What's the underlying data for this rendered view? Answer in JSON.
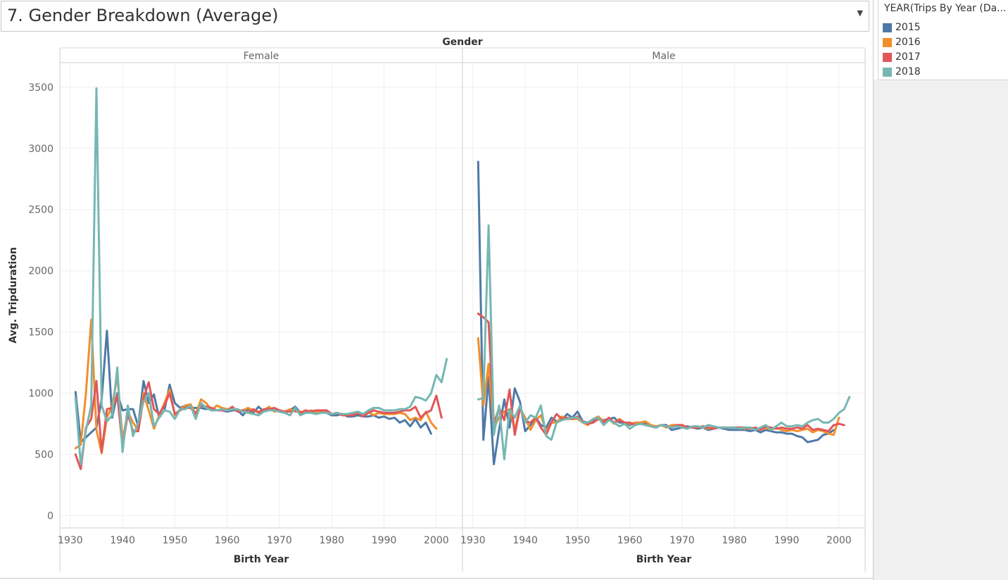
{
  "dashboard": {
    "title": "7. Gender Breakdown (Average)"
  },
  "legend": {
    "title": "YEAR(Trips By Year (Da...",
    "items": [
      {
        "label": "2015",
        "color": "#4e79a7"
      },
      {
        "label": "2016",
        "color": "#f28e2b"
      },
      {
        "label": "2017",
        "color": "#e15759"
      },
      {
        "label": "2018",
        "color": "#76b7b2"
      }
    ]
  },
  "chart_data": {
    "type": "line",
    "column_header": "Gender",
    "panels": [
      "Female",
      "Male"
    ],
    "xlabel": "Birth Year",
    "ylabel": "Avg. Tripduration",
    "xlim": [
      1928,
      2005
    ],
    "ylim": [
      -100,
      3700
    ],
    "xticks": [
      1930,
      1940,
      1950,
      1960,
      1970,
      1980,
      1990,
      2000
    ],
    "yticks": [
      0,
      500,
      1000,
      1500,
      2000,
      2500,
      3000,
      3500
    ],
    "grid": true,
    "legend_position": "right",
    "series": [
      {
        "name": "2015",
        "panel": "Female",
        "x": [
          1931,
          1932,
          1933,
          1934,
          1935,
          1936,
          1937,
          1938,
          1939,
          1940,
          1941,
          1942,
          1943,
          1944,
          1945,
          1946,
          1947,
          1948,
          1949,
          1950,
          1951,
          1952,
          1953,
          1954,
          1955,
          1956,
          1957,
          1958,
          1959,
          1960,
          1961,
          1962,
          1963,
          1964,
          1965,
          1966,
          1967,
          1968,
          1969,
          1970,
          1971,
          1972,
          1973,
          1974,
          1975,
          1976,
          1977,
          1978,
          1979,
          1980,
          1981,
          1982,
          1983,
          1984,
          1985,
          1986,
          1987,
          1988,
          1989,
          1990,
          1991,
          1992,
          1993,
          1994,
          1995,
          1996,
          1997,
          1998,
          1999
        ],
        "y": [
          1010,
          600,
          640,
          680,
          720,
          950,
          1510,
          800,
          1000,
          860,
          870,
          870,
          730,
          1100,
          920,
          990,
          800,
          860,
          1070,
          920,
          880,
          900,
          880,
          880,
          880,
          870,
          880,
          860,
          860,
          850,
          860,
          860,
          820,
          870,
          840,
          890,
          850,
          870,
          860,
          850,
          840,
          860,
          890,
          840,
          840,
          850,
          850,
          850,
          840,
          820,
          820,
          830,
          810,
          810,
          820,
          810,
          810,
          820,
          800,
          810,
          790,
          800,
          760,
          780,
          730,
          790,
          720,
          760,
          670
        ]
      },
      {
        "name": "2016",
        "panel": "Female",
        "x": [
          1931,
          1932,
          1933,
          1934,
          1935,
          1936,
          1937,
          1938,
          1939,
          1940,
          1941,
          1942,
          1943,
          1944,
          1945,
          1946,
          1947,
          1948,
          1949,
          1950,
          1951,
          1952,
          1953,
          1954,
          1955,
          1956,
          1957,
          1958,
          1959,
          1960,
          1961,
          1962,
          1963,
          1964,
          1965,
          1966,
          1967,
          1968,
          1969,
          1970,
          1971,
          1972,
          1973,
          1974,
          1975,
          1976,
          1977,
          1978,
          1979,
          1980,
          1981,
          1982,
          1983,
          1984,
          1985,
          1986,
          1987,
          1988,
          1989,
          1990,
          1991,
          1992,
          1993,
          1994,
          1995,
          1996,
          1997,
          1998,
          1999,
          2000
        ],
        "y": [
          550,
          580,
          1000,
          1600,
          700,
          510,
          800,
          900,
          1140,
          620,
          850,
          760,
          700,
          1000,
          860,
          710,
          820,
          920,
          1030,
          820,
          870,
          900,
          910,
          830,
          950,
          920,
          860,
          900,
          880,
          870,
          870,
          860,
          860,
          880,
          860,
          850,
          860,
          890,
          850,
          860,
          850,
          870,
          850,
          850,
          840,
          860,
          850,
          840,
          860,
          830,
          840,
          830,
          820,
          830,
          840,
          830,
          850,
          820,
          840,
          830,
          830,
          830,
          840,
          830,
          780,
          800,
          780,
          850,
          760,
          710
        ]
      },
      {
        "name": "2017",
        "panel": "Female",
        "x": [
          1931,
          1932,
          1933,
          1934,
          1935,
          1936,
          1937,
          1938,
          1939,
          1940,
          1941,
          1942,
          1943,
          1944,
          1945,
          1946,
          1947,
          1948,
          1949,
          1950,
          1951,
          1952,
          1953,
          1954,
          1955,
          1956,
          1957,
          1958,
          1959,
          1960,
          1961,
          1962,
          1963,
          1964,
          1965,
          1966,
          1967,
          1968,
          1969,
          1970,
          1971,
          1972,
          1973,
          1974,
          1975,
          1976,
          1977,
          1978,
          1979,
          1980,
          1981,
          1982,
          1983,
          1984,
          1985,
          1986,
          1987,
          1988,
          1989,
          1990,
          1991,
          1992,
          1993,
          1994,
          1995,
          1996,
          1997,
          1998,
          1999,
          2000,
          2001
        ],
        "y": [
          500,
          380,
          720,
          790,
          1100,
          520,
          870,
          880,
          980,
          560,
          830,
          690,
          690,
          960,
          1090,
          870,
          830,
          900,
          1000,
          830,
          860,
          880,
          880,
          830,
          900,
          890,
          880,
          860,
          860,
          860,
          890,
          850,
          860,
          840,
          870,
          840,
          870,
          870,
          880,
          860,
          850,
          850,
          860,
          840,
          860,
          850,
          860,
          860,
          860,
          830,
          840,
          820,
          820,
          820,
          840,
          810,
          840,
          860,
          850,
          840,
          840,
          840,
          850,
          860,
          860,
          890,
          800,
          840,
          860,
          980,
          800
        ]
      },
      {
        "name": "2018",
        "panel": "Female",
        "x": [
          1931,
          1932,
          1933,
          1934,
          1935,
          1936,
          1937,
          1938,
          1939,
          1940,
          1941,
          1942,
          1943,
          1944,
          1945,
          1946,
          1947,
          1948,
          1949,
          1950,
          1951,
          1952,
          1953,
          1954,
          1955,
          1956,
          1957,
          1958,
          1959,
          1960,
          1961,
          1962,
          1963,
          1964,
          1965,
          1966,
          1967,
          1968,
          1969,
          1970,
          1971,
          1972,
          1973,
          1974,
          1975,
          1976,
          1977,
          1978,
          1979,
          1980,
          1981,
          1982,
          1983,
          1984,
          1985,
          1986,
          1987,
          1988,
          1989,
          1990,
          1991,
          1992,
          1993,
          1994,
          1995,
          1996,
          1997,
          1998,
          1999,
          2000,
          2001,
          2002
        ],
        "y": [
          960,
          420,
          700,
          900,
          3490,
          900,
          770,
          820,
          1210,
          520,
          900,
          650,
          760,
          930,
          1000,
          730,
          800,
          860,
          850,
          790,
          870,
          870,
          900,
          790,
          920,
          880,
          860,
          860,
          870,
          860,
          870,
          870,
          850,
          840,
          830,
          820,
          850,
          860,
          860,
          850,
          840,
          820,
          880,
          820,
          840,
          840,
          830,
          840,
          840,
          830,
          840,
          830,
          830,
          840,
          850,
          830,
          860,
          880,
          880,
          860,
          860,
          860,
          870,
          870,
          890,
          970,
          960,
          940,
          1000,
          1150,
          1090,
          1280
        ]
      },
      {
        "name": "2015",
        "panel": "Male",
        "x": [
          1931,
          1932,
          1933,
          1934,
          1935,
          1936,
          1937,
          1938,
          1939,
          1940,
          1941,
          1942,
          1943,
          1944,
          1945,
          1946,
          1947,
          1948,
          1949,
          1950,
          1951,
          1952,
          1953,
          1954,
          1955,
          1956,
          1957,
          1958,
          1959,
          1960,
          1961,
          1962,
          1963,
          1964,
          1965,
          1966,
          1967,
          1968,
          1969,
          1970,
          1971,
          1972,
          1973,
          1974,
          1975,
          1976,
          1977,
          1978,
          1979,
          1980,
          1981,
          1982,
          1983,
          1984,
          1985,
          1986,
          1987,
          1988,
          1989,
          1990,
          1991,
          1992,
          1993,
          1994,
          1995,
          1996,
          1997,
          1998,
          1999
        ],
        "y": [
          2890,
          620,
          1130,
          420,
          700,
          950,
          720,
          1040,
          930,
          690,
          740,
          800,
          740,
          720,
          800,
          770,
          780,
          830,
          800,
          850,
          770,
          760,
          770,
          790,
          780,
          790,
          800,
          760,
          760,
          740,
          760,
          750,
          750,
          730,
          720,
          740,
          740,
          700,
          710,
          720,
          730,
          720,
          710,
          720,
          700,
          710,
          720,
          710,
          700,
          700,
          700,
          700,
          690,
          700,
          680,
          700,
          690,
          680,
          680,
          670,
          670,
          650,
          640,
          600,
          610,
          620,
          660,
          670,
          700
        ]
      },
      {
        "name": "2016",
        "panel": "Male",
        "x": [
          1931,
          1932,
          1933,
          1934,
          1935,
          1936,
          1937,
          1938,
          1939,
          1940,
          1941,
          1942,
          1943,
          1944,
          1945,
          1946,
          1947,
          1948,
          1949,
          1950,
          1951,
          1952,
          1953,
          1954,
          1955,
          1956,
          1957,
          1958,
          1959,
          1960,
          1961,
          1962,
          1963,
          1964,
          1965,
          1966,
          1967,
          1968,
          1969,
          1970,
          1971,
          1972,
          1973,
          1974,
          1975,
          1976,
          1977,
          1978,
          1979,
          1980,
          1981,
          1982,
          1983,
          1984,
          1985,
          1986,
          1987,
          1988,
          1989,
          1990,
          1991,
          1992,
          1993,
          1994,
          1995,
          1996,
          1997,
          1998,
          1999,
          2000
        ],
        "y": [
          1450,
          900,
          1240,
          720,
          800,
          850,
          870,
          700,
          880,
          800,
          700,
          780,
          820,
          690,
          760,
          760,
          810,
          790,
          790,
          790,
          760,
          740,
          790,
          810,
          770,
          790,
          750,
          790,
          760,
          750,
          760,
          760,
          770,
          740,
          730,
          740,
          720,
          740,
          740,
          740,
          720,
          720,
          720,
          730,
          710,
          720,
          720,
          720,
          720,
          720,
          720,
          710,
          720,
          710,
          700,
          720,
          700,
          720,
          700,
          690,
          700,
          690,
          700,
          710,
          680,
          700,
          690,
          670,
          660,
          800
        ]
      },
      {
        "name": "2017",
        "panel": "Male",
        "x": [
          1931,
          1932,
          1933,
          1934,
          1935,
          1936,
          1937,
          1938,
          1939,
          1940,
          1941,
          1942,
          1943,
          1944,
          1945,
          1946,
          1947,
          1948,
          1949,
          1950,
          1951,
          1952,
          1953,
          1954,
          1955,
          1956,
          1957,
          1958,
          1959,
          1960,
          1961,
          1962,
          1963,
          1964,
          1965,
          1966,
          1967,
          1968,
          1969,
          1970,
          1971,
          1972,
          1973,
          1974,
          1975,
          1976,
          1977,
          1978,
          1979,
          1980,
          1981,
          1982,
          1983,
          1984,
          1985,
          1986,
          1987,
          1988,
          1989,
          1990,
          1991,
          1992,
          1993,
          1994,
          1995,
          1996,
          1997,
          1998,
          1999,
          2000,
          2001
        ],
        "y": [
          1650,
          1620,
          1580,
          750,
          880,
          780,
          1030,
          660,
          880,
          770,
          760,
          800,
          720,
          660,
          760,
          830,
          790,
          800,
          790,
          810,
          770,
          750,
          760,
          790,
          760,
          800,
          760,
          780,
          760,
          760,
          740,
          750,
          740,
          730,
          720,
          740,
          730,
          720,
          740,
          740,
          720,
          720,
          720,
          730,
          720,
          710,
          720,
          720,
          720,
          720,
          720,
          720,
          710,
          720,
          700,
          730,
          720,
          710,
          720,
          710,
          710,
          720,
          710,
          740,
          700,
          710,
          700,
          690,
          740,
          750,
          740
        ]
      },
      {
        "name": "2018",
        "panel": "Male",
        "x": [
          1931,
          1932,
          1933,
          1934,
          1935,
          1936,
          1937,
          1938,
          1939,
          1940,
          1941,
          1942,
          1943,
          1944,
          1945,
          1946,
          1947,
          1948,
          1949,
          1950,
          1951,
          1952,
          1953,
          1954,
          1955,
          1956,
          1957,
          1958,
          1959,
          1960,
          1961,
          1962,
          1963,
          1964,
          1965,
          1966,
          1967,
          1968,
          1969,
          1970,
          1971,
          1972,
          1973,
          1974,
          1975,
          1976,
          1977,
          1978,
          1979,
          1980,
          1981,
          1982,
          1983,
          1984,
          1985,
          1986,
          1987,
          1988,
          1989,
          1990,
          1991,
          1992,
          1993,
          1994,
          1995,
          1996,
          1997,
          1998,
          1999,
          2000,
          2001,
          2002
        ],
        "y": [
          950,
          960,
          2370,
          660,
          900,
          460,
          870,
          800,
          900,
          760,
          820,
          800,
          900,
          650,
          620,
          760,
          780,
          790,
          800,
          800,
          760,
          760,
          790,
          800,
          740,
          780,
          760,
          730,
          750,
          710,
          740,
          750,
          740,
          730,
          720,
          740,
          730,
          720,
          730,
          720,
          710,
          730,
          730,
          720,
          740,
          730,
          720,
          720,
          720,
          720,
          710,
          720,
          720,
          700,
          720,
          740,
          700,
          730,
          760,
          730,
          730,
          740,
          730,
          760,
          780,
          790,
          760,
          760,
          790,
          840,
          870,
          970
        ]
      }
    ]
  }
}
